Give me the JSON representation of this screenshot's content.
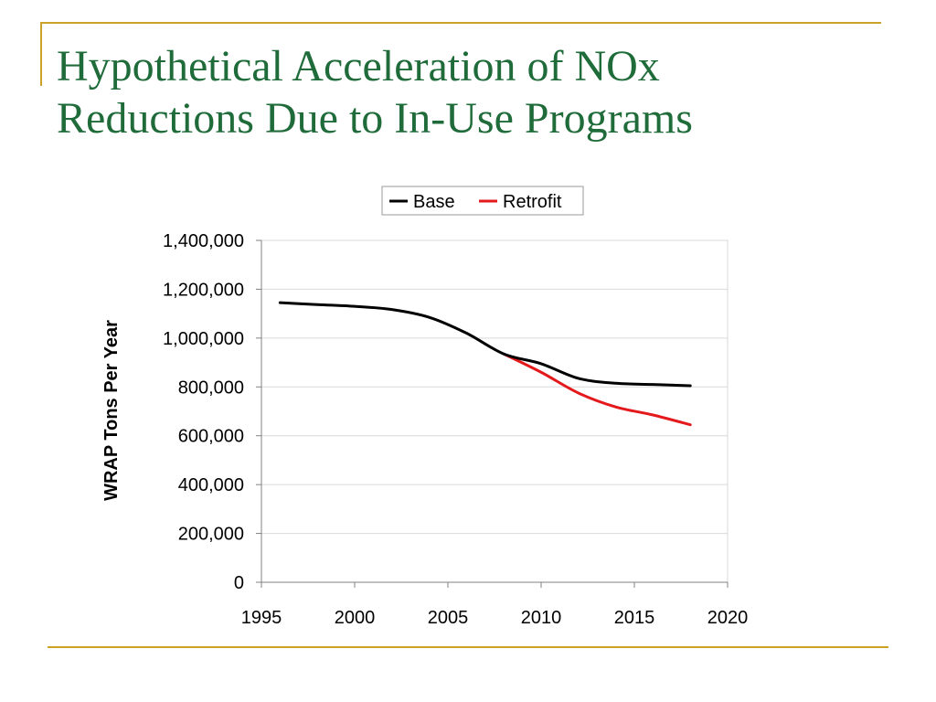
{
  "slide": {
    "title_line1": "Hypothetical Acceleration of NOx",
    "title_line2": "Reductions Due to In-Use Programs",
    "title_color": "#1f6b3a",
    "accent_color": "#c9a227"
  },
  "chart_data": {
    "type": "line",
    "title": "",
    "xlabel": "",
    "ylabel": "WRAP Tons Per Year",
    "xlim": [
      1995,
      2020
    ],
    "ylim": [
      0,
      1400000
    ],
    "x_ticks": [
      1995,
      2000,
      2005,
      2010,
      2015,
      2020
    ],
    "x_tick_labels": [
      "1995",
      "2000",
      "2005",
      "2010",
      "2015",
      "2020"
    ],
    "y_ticks": [
      0,
      200000,
      400000,
      600000,
      800000,
      1000000,
      1200000,
      1400000
    ],
    "y_tick_labels": [
      "0",
      "200,000",
      "400,000",
      "600,000",
      "800,000",
      "1,000,000",
      "1,200,000",
      "1,400,000"
    ],
    "grid": true,
    "legend_position": "top",
    "series": [
      {
        "name": "Base",
        "color": "#000000",
        "x": [
          1996,
          1998,
          2000,
          2002,
          2004,
          2006,
          2008,
          2010,
          2012,
          2014,
          2016,
          2018
        ],
        "y": [
          1145000,
          1137000,
          1130000,
          1117000,
          1085000,
          1020000,
          935000,
          895000,
          835000,
          815000,
          810000,
          805000
        ]
      },
      {
        "name": "Retrofit",
        "color": "#e3191c",
        "x": [
          2008,
          2010,
          2012,
          2014,
          2016,
          2018
        ],
        "y": [
          935000,
          860000,
          775000,
          718000,
          685000,
          645000
        ]
      }
    ]
  }
}
